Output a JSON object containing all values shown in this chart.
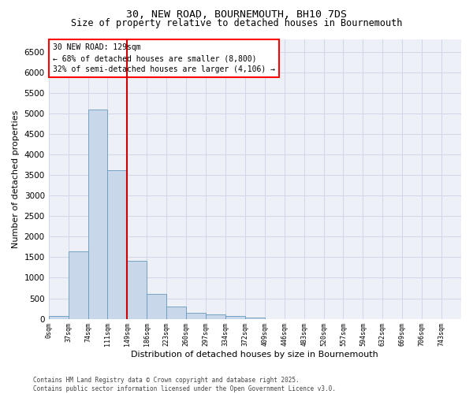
{
  "title_line1": "30, NEW ROAD, BOURNEMOUTH, BH10 7DS",
  "title_line2": "Size of property relative to detached houses in Bournemouth",
  "xlabel": "Distribution of detached houses by size in Bournemouth",
  "ylabel": "Number of detached properties",
  "bar_color": "#c8d8ea",
  "bar_edge_color": "#6699bb",
  "vline_color": "#cc0000",
  "annotation_title": "30 NEW ROAD: 129sqm",
  "annotation_line1": "← 68% of detached houses are smaller (8,800)",
  "annotation_line2": "32% of semi-detached houses are larger (4,106) →",
  "categories": [
    "0sqm",
    "37sqm",
    "74sqm",
    "111sqm",
    "149sqm",
    "186sqm",
    "223sqm",
    "260sqm",
    "297sqm",
    "334sqm",
    "372sqm",
    "409sqm",
    "446sqm",
    "483sqm",
    "520sqm",
    "557sqm",
    "594sqm",
    "632sqm",
    "669sqm",
    "706sqm",
    "743sqm"
  ],
  "values": [
    60,
    1650,
    5100,
    3620,
    1420,
    610,
    305,
    155,
    110,
    60,
    35,
    0,
    0,
    0,
    0,
    0,
    0,
    0,
    0,
    0,
    0
  ],
  "vline_after_bar": 3,
  "ylim": [
    0,
    6800
  ],
  "yticks": [
    0,
    500,
    1000,
    1500,
    2000,
    2500,
    3000,
    3500,
    4000,
    4500,
    5000,
    5500,
    6000,
    6500
  ],
  "grid_color": "#d0d8e8",
  "background_color": "#edf1f7",
  "footer_line1": "Contains HM Land Registry data © Crown copyright and database right 2025.",
  "footer_line2": "Contains public sector information licensed under the Open Government Licence v3.0."
}
